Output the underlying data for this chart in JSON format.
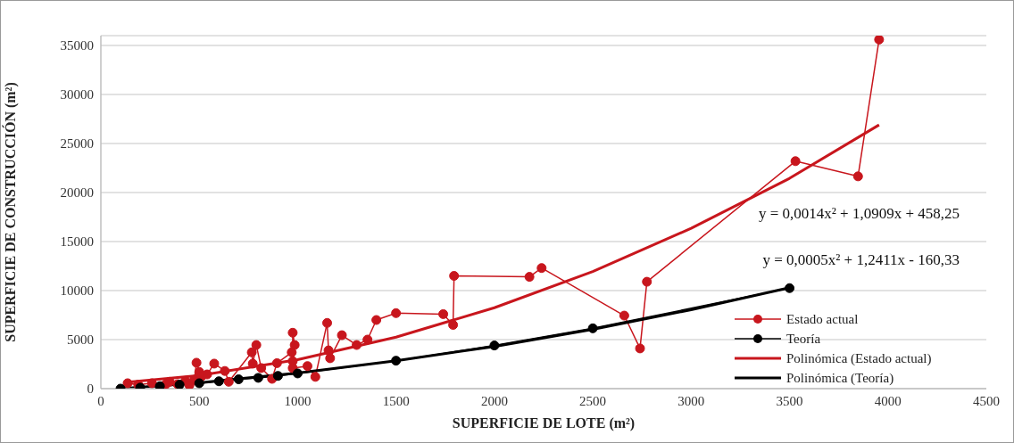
{
  "chart_data": {
    "type": "line",
    "xlabel": "SUPERFICIE DE LOTE (m²)",
    "ylabel": "SUPERFICIE DE CONSTRUCCIÓN (m²)",
    "xlim": [
      0,
      4500
    ],
    "xticks": [
      0,
      500,
      1000,
      1500,
      2000,
      2500,
      3000,
      3500,
      4000,
      4500
    ],
    "ylim": [
      0,
      36000
    ],
    "yticks": [
      0,
      5000,
      10000,
      15000,
      20000,
      25000,
      30000,
      35000
    ],
    "grid": "y",
    "legend": "bottom right",
    "marker": "circle",
    "line_style": "solid",
    "series": [
      {
        "name": "Estado actual",
        "color": "#c8161d",
        "x": [
          136,
          190,
          260,
          330,
          350,
          390,
          430,
          450,
          475,
          486,
          500,
          510,
          540,
          576,
          630,
          650,
          767,
          772,
          790,
          815,
          870,
          895,
          970,
          975,
          975,
          985,
          975,
          1050,
          1090,
          1150,
          1157,
          1165,
          1225,
          1300,
          1355,
          1400,
          1500,
          1740,
          1790,
          1795,
          2178,
          2240,
          2660,
          2740,
          2775,
          3530,
          3848,
          3955
        ],
        "values": [
          550,
          400,
          550,
          450,
          700,
          450,
          800,
          350,
          900,
          2640,
          1700,
          1200,
          1450,
          2550,
          1800,
          700,
          3700,
          2550,
          4450,
          2100,
          1000,
          2600,
          3700,
          2800,
          5700,
          4450,
          2100,
          2300,
          1200,
          6700,
          3900,
          3100,
          5450,
          4450,
          5000,
          7000,
          7700,
          7600,
          6500,
          11500,
          11400,
          12300,
          7450,
          4100,
          10900,
          23200,
          21650,
          35600
        ]
      },
      {
        "name": "Teoría",
        "color": "#000000",
        "x": [
          100,
          200,
          300,
          400,
          500,
          600,
          700,
          800,
          900,
          1000,
          1500,
          2000,
          2500,
          3500
        ],
        "values": [
          0,
          100,
          250,
          400,
          550,
          750,
          950,
          1100,
          1300,
          1550,
          2850,
          4400,
          6150,
          10250
        ]
      },
      {
        "name": "Polinómica (Estado actual)",
        "color": "#c8161d",
        "marker": "none",
        "x": [
          136,
          500,
          1000,
          1500,
          2000,
          2500,
          3000,
          3500,
          3955
        ],
        "values": [
          650,
          1350,
          2950,
          5250,
          8250,
          11950,
          16350,
          21450,
          26900
        ]
      },
      {
        "name": "Polinómica (Teoría)",
        "color": "#000000",
        "marker": "none",
        "x": [
          100,
          500,
          1000,
          1500,
          2000,
          2500,
          3000,
          3500
        ],
        "values": [
          0,
          600,
          1600,
          2850,
          4300,
          6050,
          8050,
          10300
        ]
      }
    ],
    "annotations": [
      "y = 0,0014x² + 1,0909x + 458,25",
      "y = 0,0005x² + 1,2411x - 160,33"
    ]
  }
}
